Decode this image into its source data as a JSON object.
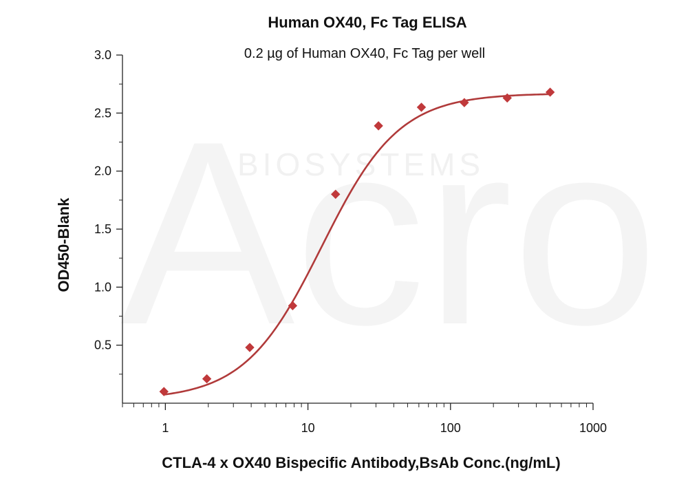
{
  "watermark": {
    "brand": "Acro",
    "sub": "BIOSYSTEMS"
  },
  "chart_data": {
    "type": "scatter",
    "title": "Human OX40, Fc Tag ELISA",
    "subtitle": "0.2 µg of Human OX40, Fc Tag  per well",
    "xlabel": "CTLA-4 x OX40 Bispecific Antibody,BsAb Conc.(ng/mL)",
    "ylabel": "OD450-Blank",
    "xscale": "log",
    "xlim": [
      0.5,
      1000
    ],
    "ylim": [
      0,
      3.0
    ],
    "x_ticks": [
      1,
      10,
      100,
      1000
    ],
    "x_tick_labels": [
      "1",
      "10",
      "100",
      "1000"
    ],
    "y_ticks": [
      0.5,
      1.0,
      1.5,
      2.0,
      2.5,
      3.0
    ],
    "y_tick_labels": [
      "0.5",
      "1.0",
      "1.5",
      "2.0",
      "2.5",
      "3.0"
    ],
    "grid": false,
    "series": [
      {
        "marker": "diamond",
        "color": "#c0393b",
        "x": [
          0.977,
          1.953,
          3.906,
          7.813,
          15.625,
          31.25,
          62.5,
          125,
          250,
          500
        ],
        "y": [
          0.1,
          0.21,
          0.48,
          0.84,
          1.8,
          2.39,
          2.55,
          2.59,
          2.63,
          2.68
        ]
      }
    ],
    "fit_curve": {
      "model": "4PL",
      "color": "#b03a3a",
      "bottom": 0.03,
      "top": 2.67,
      "ec50": 12.5,
      "hill": 1.6
    }
  }
}
